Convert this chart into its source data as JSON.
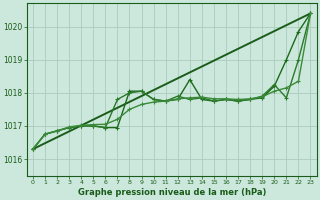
{
  "background_color": "#cce8dc",
  "grid_color": "#aaccbb",
  "xlabel": "Graphe pression niveau de la mer (hPa)",
  "xlim": [
    -0.5,
    23.5
  ],
  "ylim": [
    1015.5,
    1020.7
  ],
  "yticks": [
    1016,
    1017,
    1018,
    1019,
    1020
  ],
  "xticks": [
    0,
    1,
    2,
    3,
    4,
    5,
    6,
    7,
    8,
    9,
    10,
    11,
    12,
    13,
    14,
    15,
    16,
    17,
    18,
    19,
    20,
    21,
    22,
    23
  ],
  "series": [
    {
      "x": [
        0,
        23
      ],
      "y": [
        1016.3,
        1020.4
      ],
      "marker": null,
      "lw": 1.4,
      "color": "#1a5c1a",
      "ms": 0
    },
    {
      "x": [
        0,
        1,
        2,
        3,
        4,
        5,
        6,
        7,
        8,
        9,
        10,
        11,
        12,
        13,
        14,
        15,
        16,
        17,
        18,
        19,
        20,
        21,
        22,
        23
      ],
      "y": [
        1016.3,
        1016.75,
        1016.85,
        1016.95,
        1017.0,
        1017.0,
        1016.95,
        1016.95,
        1018.05,
        1018.05,
        1017.8,
        1017.75,
        1017.8,
        1018.4,
        1017.8,
        1017.75,
        1017.8,
        1017.75,
        1017.8,
        1017.85,
        1018.2,
        1019.0,
        1019.85,
        1020.4
      ],
      "marker": "+",
      "lw": 1.0,
      "color": "#1a6b1a",
      "ms": 3.5
    },
    {
      "x": [
        0,
        1,
        2,
        3,
        4,
        5,
        6,
        7,
        8,
        9,
        10,
        11,
        12,
        13,
        14,
        15,
        16,
        17,
        18,
        19,
        20,
        21,
        22,
        23
      ],
      "y": [
        1016.3,
        1016.75,
        1016.85,
        1016.95,
        1017.0,
        1017.0,
        1016.95,
        1017.8,
        1018.0,
        1018.05,
        1017.8,
        1017.75,
        1017.9,
        1017.8,
        1017.85,
        1017.75,
        1017.8,
        1017.75,
        1017.8,
        1017.9,
        1018.25,
        1017.85,
        1019.0,
        1020.4
      ],
      "marker": "+",
      "lw": 1.0,
      "color": "#2a7a2a",
      "ms": 3.5
    },
    {
      "x": [
        0,
        1,
        2,
        3,
        4,
        5,
        6,
        7,
        8,
        9,
        10,
        11,
        12,
        13,
        14,
        15,
        16,
        17,
        18,
        19,
        20,
        21,
        22,
        23
      ],
      "y": [
        1016.3,
        1016.75,
        1016.85,
        1016.97,
        1017.02,
        1017.04,
        1017.05,
        1017.2,
        1017.5,
        1017.65,
        1017.72,
        1017.75,
        1017.82,
        1017.85,
        1017.87,
        1017.82,
        1017.82,
        1017.8,
        1017.82,
        1017.88,
        1018.05,
        1018.15,
        1018.35,
        1020.4
      ],
      "marker": "+",
      "lw": 1.0,
      "color": "#3a8a3a",
      "ms": 3.5
    }
  ]
}
